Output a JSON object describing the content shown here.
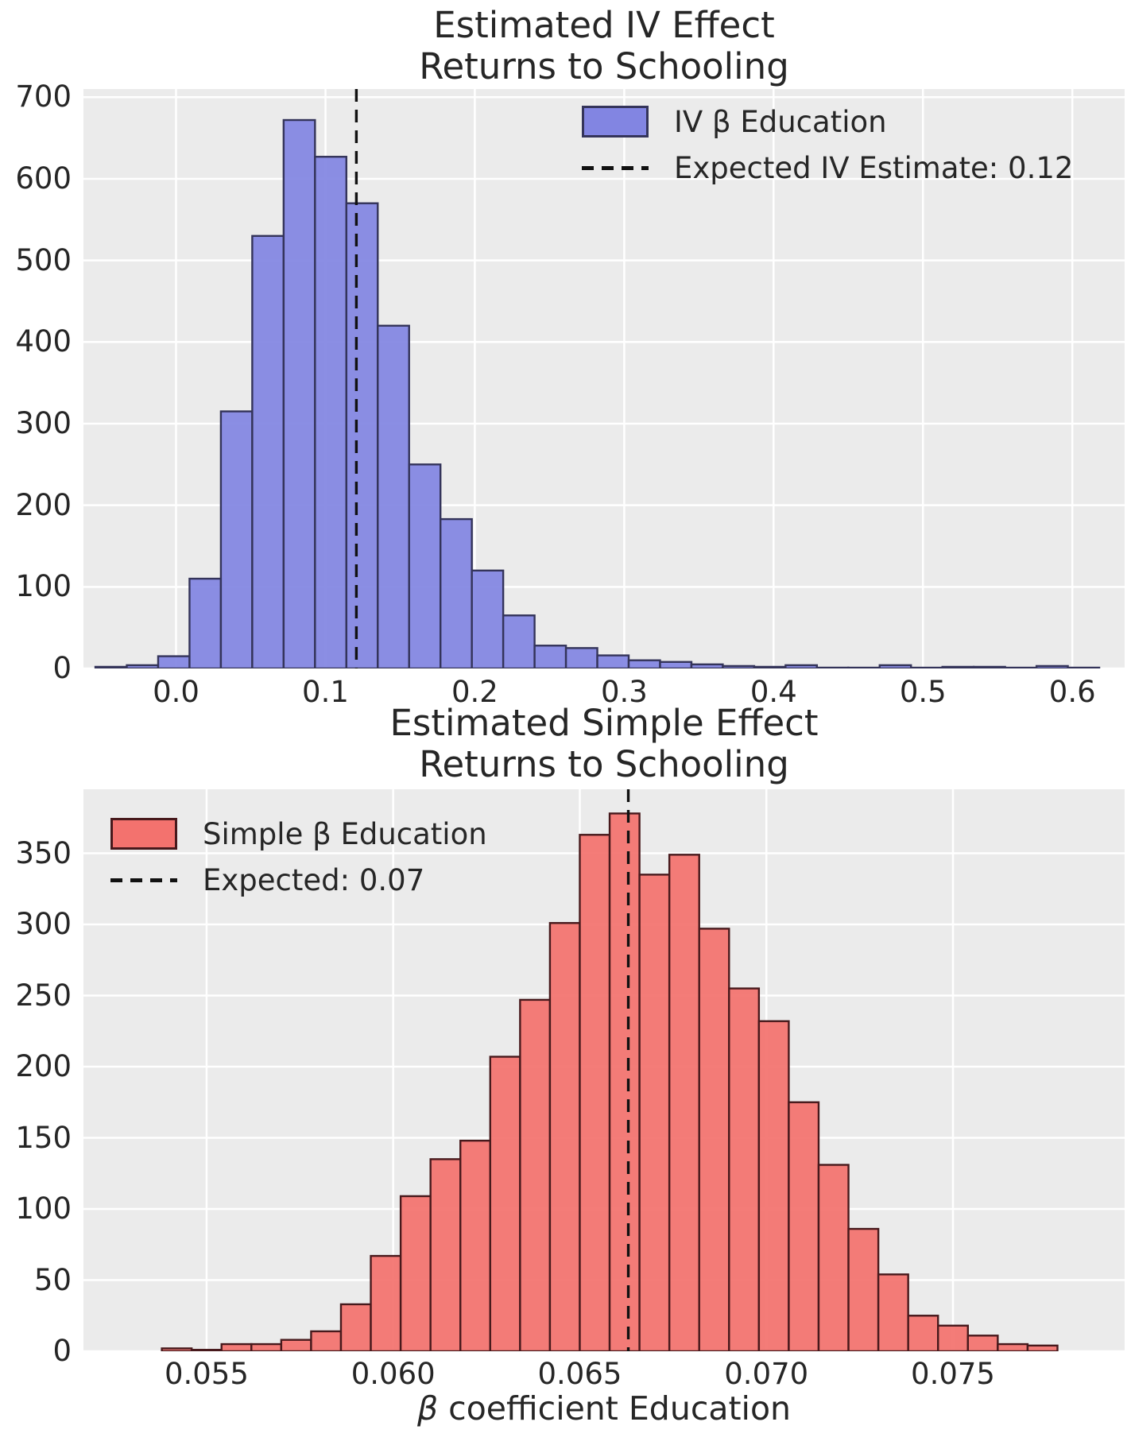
{
  "figure": {
    "background": "#ffffff",
    "plot_background": "#ebebeb",
    "grid_color": "#ffffff",
    "text_color": "#262626"
  },
  "chart_data": [
    {
      "type": "bar",
      "subtype": "histogram",
      "title_lines": [
        "Estimated IV Effect",
        "Returns to Schooling"
      ],
      "xlabel": "",
      "ylabel": "",
      "xlim": [
        -0.062,
        0.635
      ],
      "ylim": [
        0,
        710
      ],
      "xticks": [
        0.0,
        0.1,
        0.2,
        0.3,
        0.4,
        0.5,
        0.6
      ],
      "xtick_labels": [
        "0.0",
        "0.1",
        "0.2",
        "0.3",
        "0.4",
        "0.5",
        "0.6"
      ],
      "yticks": [
        0,
        100,
        200,
        300,
        400,
        500,
        600,
        700
      ],
      "ytick_labels": [
        "0",
        "100",
        "200",
        "300",
        "400",
        "500",
        "600",
        "700"
      ],
      "grid": true,
      "legend_position": "upper right",
      "series": [
        {
          "name": "IV β Education",
          "color": "#8285e2",
          "edge_color": "#34345a",
          "bin_start": -0.054,
          "bin_width": 0.021,
          "counts": [
            2,
            4,
            15,
            110,
            315,
            530,
            672,
            627,
            570,
            420,
            250,
            183,
            120,
            65,
            28,
            25,
            16,
            10,
            8,
            5,
            3,
            2,
            4,
            1,
            0,
            4,
            0,
            2,
            2,
            0,
            3,
            1
          ]
        }
      ],
      "vline": {
        "x": 0.1207,
        "label": "Expected IV Estimate: 0.12",
        "color": "#111111",
        "style": "dashed"
      }
    },
    {
      "type": "bar",
      "subtype": "histogram",
      "title_lines": [
        "Estimated Simple Effect",
        "Returns to Schooling"
      ],
      "xlabel": "β coefficient Education",
      "xlabel_parts": {
        "beta": "β",
        "rest": " coefficient Education"
      },
      "ylabel": "",
      "xlim": [
        0.0517,
        0.0796
      ],
      "ylim": [
        0,
        395
      ],
      "xticks": [
        0.055,
        0.06,
        0.065,
        0.07,
        0.075
      ],
      "xtick_labels": [
        "0.055",
        "0.060",
        "0.065",
        "0.070",
        "0.075"
      ],
      "yticks": [
        0,
        50,
        100,
        150,
        200,
        250,
        300,
        350
      ],
      "ytick_labels": [
        "0",
        "50",
        "100",
        "150",
        "200",
        "250",
        "300",
        "350"
      ],
      "grid": true,
      "legend_position": "upper left",
      "series": [
        {
          "name": "Simple β Education",
          "color": "#f3726e",
          "edge_color": "#47191c",
          "bin_start": 0.0538,
          "bin_width": 0.0008,
          "counts": [
            2,
            1,
            5,
            5,
            8,
            14,
            33,
            67,
            109,
            135,
            148,
            207,
            247,
            301,
            363,
            378,
            335,
            349,
            297,
            255,
            232,
            175,
            131,
            86,
            54,
            25,
            18,
            11,
            5,
            4
          ]
        }
      ],
      "vline": {
        "x": 0.0663,
        "label": "Expected: 0.07",
        "color": "#111111",
        "style": "dashed"
      }
    }
  ]
}
